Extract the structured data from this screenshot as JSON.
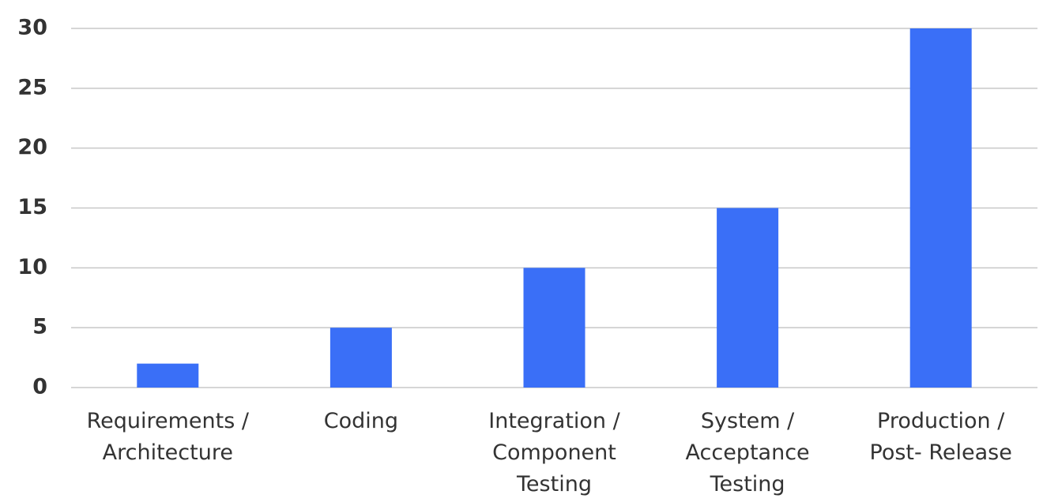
{
  "chart_data": {
    "type": "bar",
    "categories": [
      "Requirements / Architecture",
      "Coding",
      "Integration / Component Testing",
      "System / Acceptance Testing",
      "Production / Post- Release"
    ],
    "values": [
      2,
      5,
      10,
      15,
      30
    ],
    "color": "#3a6ff7",
    "ylim": [
      0,
      30
    ],
    "yticks": [
      0,
      5,
      10,
      15,
      20,
      25,
      30
    ],
    "grid": true
  }
}
